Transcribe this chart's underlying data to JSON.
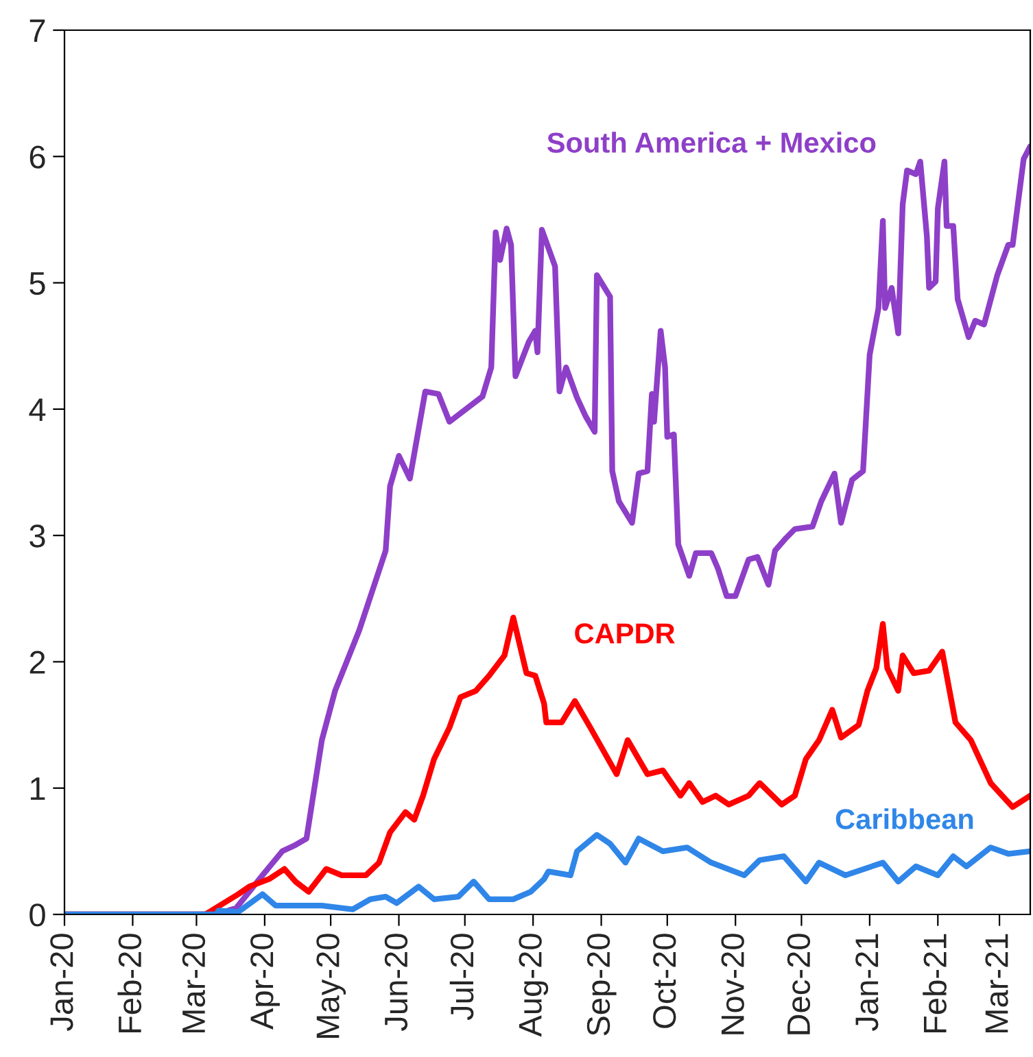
{
  "chart_data": {
    "type": "line",
    "xlim": [
      "2020-01-01",
      "2021-03-15"
    ],
    "xticks": [
      {
        "value": "2020-01-01",
        "label": "Jan-20"
      },
      {
        "value": "2020-02-01",
        "label": "Feb-20"
      },
      {
        "value": "2020-03-01",
        "label": "Mar-20"
      },
      {
        "value": "2020-04-01",
        "label": "Apr-20"
      },
      {
        "value": "2020-05-01",
        "label": "May-20"
      },
      {
        "value": "2020-06-01",
        "label": "Jun-20"
      },
      {
        "value": "2020-07-01",
        "label": "Jul-20"
      },
      {
        "value": "2020-08-01",
        "label": "Aug-20"
      },
      {
        "value": "2020-09-01",
        "label": "Sep-20"
      },
      {
        "value": "2020-10-01",
        "label": "Oct-20"
      },
      {
        "value": "2020-11-01",
        "label": "Nov-20"
      },
      {
        "value": "2020-12-01",
        "label": "Dec-20"
      },
      {
        "value": "2021-01-01",
        "label": "Jan-21"
      },
      {
        "value": "2021-02-01",
        "label": "Feb-21"
      },
      {
        "value": "2021-03-01",
        "label": "Mar-21"
      }
    ],
    "ylim": [
      0,
      7
    ],
    "yticks": [
      0,
      1,
      2,
      3,
      4,
      5,
      6,
      7
    ],
    "grid": false,
    "legend": false,
    "line_style": "solid",
    "marker": "none",
    "series": [
      {
        "name": "South America + Mexico",
        "color": "#8e3fc8",
        "x": [
          "2020-01-01",
          "2020-03-10",
          "2020-03-19",
          "2020-03-31",
          "2020-04-09",
          "2020-04-15",
          "2020-04-20",
          "2020-04-27",
          "2020-05-03",
          "2020-05-14",
          "2020-05-26",
          "2020-05-28",
          "2020-06-01",
          "2020-06-06",
          "2020-06-13",
          "2020-06-19",
          "2020-06-24",
          "2020-07-09",
          "2020-07-13",
          "2020-07-15",
          "2020-07-17",
          "2020-07-20",
          "2020-07-22",
          "2020-07-24",
          "2020-07-30",
          "2020-08-02",
          "2020-08-03",
          "2020-08-05",
          "2020-08-11",
          "2020-08-13",
          "2020-08-16",
          "2020-08-21",
          "2020-08-25",
          "2020-08-29",
          "2020-08-30",
          "2020-09-05",
          "2020-09-06",
          "2020-09-09",
          "2020-09-15",
          "2020-09-18",
          "2020-09-22",
          "2020-09-24",
          "2020-09-25",
          "2020-09-28",
          "2020-09-30",
          "2020-10-01",
          "2020-10-04",
          "2020-10-06",
          "2020-10-11",
          "2020-10-14",
          "2020-10-21",
          "2020-10-24",
          "2020-10-28",
          "2020-11-01",
          "2020-11-07",
          "2020-11-11",
          "2020-11-16",
          "2020-11-19",
          "2020-11-24",
          "2020-11-28",
          "2020-12-06",
          "2020-12-10",
          "2020-12-16",
          "2020-12-19",
          "2020-12-24",
          "2020-12-29",
          "2021-01-01",
          "2021-01-05",
          "2021-01-07",
          "2021-01-08",
          "2021-01-11",
          "2021-01-14",
          "2021-01-16",
          "2021-01-18",
          "2021-01-22",
          "2021-01-24",
          "2021-01-27",
          "2021-01-28",
          "2021-01-31",
          "2021-02-01",
          "2021-02-04",
          "2021-02-05",
          "2021-02-08",
          "2021-02-10",
          "2021-02-15",
          "2021-02-18",
          "2021-02-22",
          "2021-02-28",
          "2021-03-05",
          "2021-03-07",
          "2021-03-12",
          "2021-03-15"
        ],
        "values": [
          0,
          0,
          0.05,
          0.31,
          0.5,
          0.55,
          0.6,
          1.38,
          1.77,
          2.25,
          2.88,
          3.39,
          3.63,
          3.45,
          4.14,
          4.12,
          3.9,
          4.1,
          4.33,
          5.4,
          5.18,
          5.43,
          5.3,
          4.26,
          4.53,
          4.62,
          4.45,
          5.42,
          5.13,
          4.14,
          4.33,
          4.09,
          3.94,
          3.82,
          5.06,
          4.89,
          3.51,
          3.27,
          3.1,
          3.49,
          3.51,
          4.12,
          3.9,
          4.62,
          4.33,
          3.78,
          3.8,
          2.93,
          2.68,
          2.86,
          2.86,
          2.74,
          2.52,
          2.52,
          2.81,
          2.83,
          2.61,
          2.88,
          2.98,
          3.05,
          3.07,
          3.27,
          3.49,
          3.1,
          3.44,
          3.51,
          4.43,
          4.8,
          5.49,
          4.8,
          4.96,
          4.6,
          5.62,
          5.89,
          5.86,
          5.96,
          5.37,
          4.96,
          5.01,
          5.59,
          5.96,
          5.45,
          5.45,
          4.87,
          4.57,
          4.7,
          4.67,
          5.06,
          5.3,
          5.3,
          5.98,
          6.08
        ]
      },
      {
        "name": "CAPDR",
        "color": "#ff0000",
        "x": [
          "2020-01-01",
          "2020-03-05",
          "2020-03-20",
          "2020-03-25",
          "2020-04-03",
          "2020-04-10",
          "2020-04-15",
          "2020-04-21",
          "2020-04-29",
          "2020-05-06",
          "2020-05-17",
          "2020-05-23",
          "2020-05-28",
          "2020-06-04",
          "2020-06-08",
          "2020-06-12",
          "2020-06-17",
          "2020-06-24",
          "2020-06-29",
          "2020-07-06",
          "2020-07-12",
          "2020-07-19",
          "2020-07-23",
          "2020-07-29",
          "2020-08-02",
          "2020-08-06",
          "2020-08-07",
          "2020-08-14",
          "2020-08-20",
          "2020-08-27",
          "2020-09-08",
          "2020-09-13",
          "2020-09-22",
          "2020-09-29",
          "2020-10-07",
          "2020-10-11",
          "2020-10-17",
          "2020-10-23",
          "2020-10-29",
          "2020-11-07",
          "2020-11-12",
          "2020-11-22",
          "2020-11-28",
          "2020-12-03",
          "2020-12-09",
          "2020-12-15",
          "2020-12-19",
          "2020-12-27",
          "2020-12-31",
          "2021-01-04",
          "2021-01-07",
          "2021-01-09",
          "2021-01-14",
          "2021-01-16",
          "2021-01-21",
          "2021-01-28",
          "2021-02-03",
          "2021-02-09",
          "2021-02-16",
          "2021-02-25",
          "2021-03-07",
          "2021-03-15"
        ],
        "values": [
          0,
          0,
          0.16,
          0.22,
          0.28,
          0.36,
          0.26,
          0.18,
          0.36,
          0.31,
          0.31,
          0.41,
          0.65,
          0.81,
          0.75,
          0.94,
          1.23,
          1.48,
          1.72,
          1.77,
          1.89,
          2.05,
          2.35,
          1.91,
          1.89,
          1.67,
          1.52,
          1.52,
          1.69,
          1.48,
          1.11,
          1.38,
          1.11,
          1.14,
          0.94,
          1.04,
          0.89,
          0.94,
          0.87,
          0.94,
          1.04,
          0.87,
          0.94,
          1.23,
          1.38,
          1.62,
          1.4,
          1.5,
          1.77,
          1.95,
          2.3,
          1.95,
          1.77,
          2.05,
          1.91,
          1.93,
          2.08,
          1.52,
          1.38,
          1.04,
          0.85,
          0.94
        ]
      },
      {
        "name": "Caribbean",
        "color": "#2f86e8",
        "x": [
          "2020-01-01",
          "2020-03-10",
          "2020-03-11",
          "2020-03-20",
          "2020-03-31",
          "2020-04-06",
          "2020-04-17",
          "2020-04-27",
          "2020-05-11",
          "2020-05-19",
          "2020-05-26",
          "2020-05-31",
          "2020-06-10",
          "2020-06-17",
          "2020-06-28",
          "2020-07-05",
          "2020-07-12",
          "2020-07-23",
          "2020-07-31",
          "2020-08-06",
          "2020-08-08",
          "2020-08-18",
          "2020-08-21",
          "2020-08-30",
          "2020-09-05",
          "2020-09-12",
          "2020-09-18",
          "2020-09-29",
          "2020-10-10",
          "2020-10-21",
          "2020-11-05",
          "2020-11-12",
          "2020-11-23",
          "2020-12-03",
          "2020-12-09",
          "2020-12-21",
          "2021-01-07",
          "2021-01-14",
          "2021-01-22",
          "2021-02-01",
          "2021-02-08",
          "2021-02-14",
          "2021-02-25",
          "2021-03-05",
          "2021-03-15"
        ],
        "values": [
          0,
          0,
          0.03,
          0.02,
          0.16,
          0.07,
          0.07,
          0.07,
          0.04,
          0.12,
          0.14,
          0.09,
          0.22,
          0.12,
          0.14,
          0.26,
          0.12,
          0.12,
          0.18,
          0.28,
          0.34,
          0.31,
          0.5,
          0.63,
          0.56,
          0.41,
          0.6,
          0.5,
          0.53,
          0.41,
          0.31,
          0.43,
          0.46,
          0.26,
          0.41,
          0.31,
          0.41,
          0.26,
          0.38,
          0.31,
          0.46,
          0.38,
          0.53,
          0.48,
          0.5
        ]
      }
    ]
  }
}
